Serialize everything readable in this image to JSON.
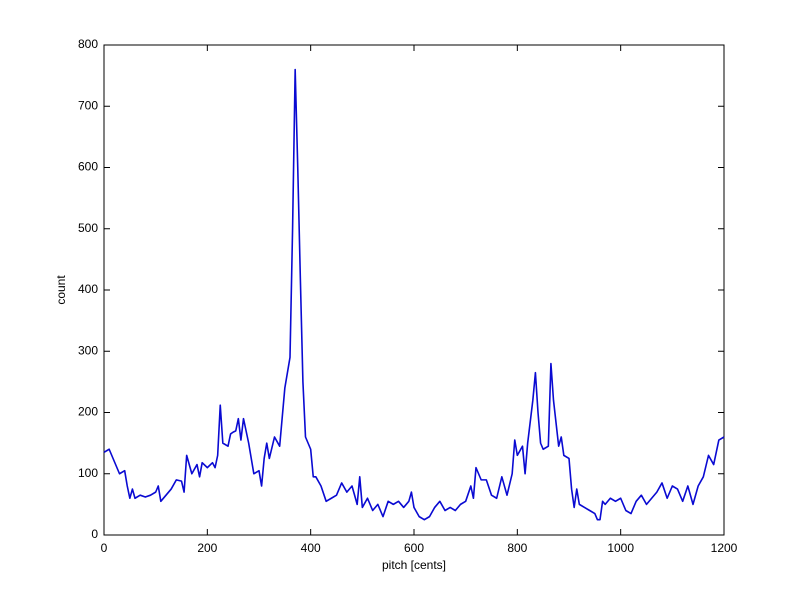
{
  "chart_data": {
    "type": "line",
    "xlabel": "pitch [cents]",
    "ylabel": "count",
    "x": [
      0,
      10,
      20,
      30,
      40,
      45,
      50,
      55,
      60,
      70,
      80,
      90,
      100,
      105,
      110,
      120,
      130,
      140,
      150,
      155,
      160,
      170,
      180,
      185,
      190,
      200,
      210,
      215,
      220,
      225,
      230,
      240,
      245,
      250,
      255,
      260,
      265,
      270,
      280,
      290,
      300,
      305,
      310,
      315,
      320,
      330,
      340,
      350,
      360,
      365,
      370,
      375,
      380,
      385,
      390,
      400,
      405,
      410,
      420,
      430,
      440,
      450,
      460,
      470,
      480,
      490,
      495,
      500,
      510,
      520,
      530,
      540,
      550,
      560,
      570,
      580,
      590,
      595,
      600,
      610,
      620,
      630,
      640,
      650,
      660,
      670,
      680,
      690,
      700,
      710,
      715,
      720,
      730,
      740,
      750,
      760,
      770,
      780,
      790,
      795,
      800,
      810,
      815,
      820,
      830,
      835,
      840,
      845,
      850,
      860,
      865,
      870,
      880,
      885,
      890,
      900,
      905,
      910,
      915,
      920,
      930,
      940,
      950,
      955,
      960,
      965,
      970,
      980,
      990,
      1000,
      1010,
      1020,
      1030,
      1040,
      1050,
      1060,
      1070,
      1080,
      1090,
      1100,
      1110,
      1120,
      1130,
      1140,
      1150,
      1160,
      1170,
      1180,
      1190,
      1200
    ],
    "values": [
      135,
      140,
      120,
      100,
      105,
      80,
      60,
      75,
      60,
      65,
      62,
      65,
      70,
      80,
      55,
      65,
      75,
      90,
      88,
      70,
      130,
      100,
      115,
      95,
      118,
      110,
      118,
      110,
      130,
      212,
      150,
      145,
      165,
      168,
      170,
      190,
      155,
      190,
      150,
      100,
      105,
      80,
      125,
      150,
      125,
      160,
      145,
      240,
      290,
      500,
      760,
      600,
      420,
      250,
      160,
      140,
      95,
      95,
      80,
      55,
      60,
      65,
      85,
      70,
      80,
      50,
      95,
      45,
      60,
      40,
      50,
      30,
      55,
      50,
      55,
      45,
      55,
      70,
      45,
      30,
      25,
      30,
      45,
      55,
      40,
      45,
      40,
      50,
      55,
      80,
      60,
      110,
      90,
      90,
      65,
      60,
      95,
      65,
      100,
      155,
      130,
      145,
      100,
      150,
      220,
      265,
      200,
      150,
      140,
      145,
      280,
      220,
      145,
      160,
      130,
      125,
      75,
      45,
      75,
      50,
      45,
      40,
      35,
      25,
      25,
      55,
      50,
      60,
      55,
      60,
      40,
      35,
      55,
      65,
      50,
      60,
      70,
      85,
      60,
      80,
      75,
      55,
      80,
      50,
      80,
      95,
      130,
      115,
      155,
      160
    ],
    "color": "#0a0ad2",
    "xlim": [
      0,
      1200
    ],
    "xticks": [
      0,
      200,
      400,
      600,
      800,
      1000,
      1200
    ],
    "ylim": [
      0,
      800
    ],
    "yticks": [
      0,
      100,
      200,
      300,
      400,
      500,
      600,
      700,
      800
    ]
  }
}
